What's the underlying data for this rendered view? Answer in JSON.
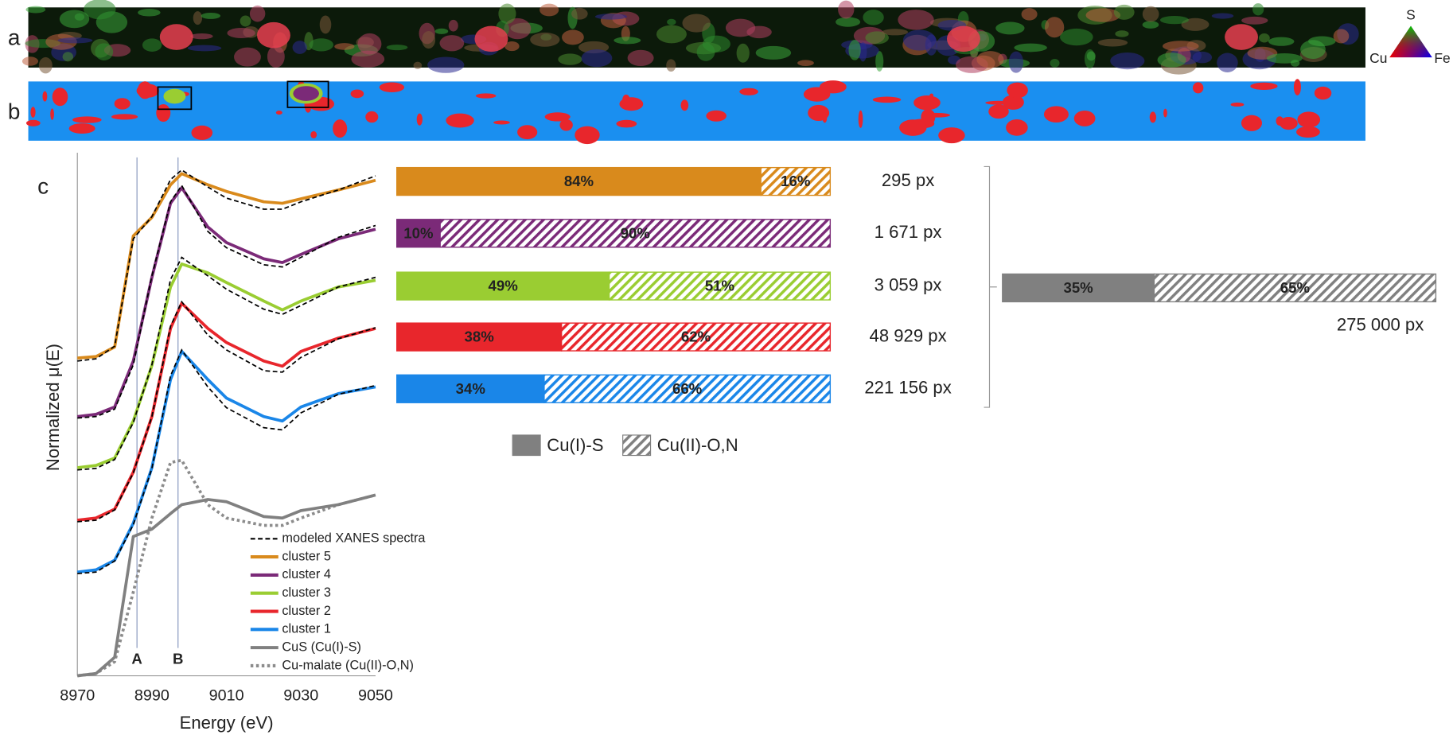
{
  "panels": {
    "labels": [
      "a",
      "b",
      "c"
    ]
  },
  "ternary": {
    "labels": [
      "S",
      "Cu",
      "Fe"
    ]
  },
  "chart_data": [
    {
      "type": "line",
      "xlabel": "Energy (eV)",
      "ylabel": "Normalized μ(E)",
      "model_name": "modeled XANES spectra",
      "x": [
        8970,
        8975,
        8980,
        8985,
        8990,
        8995,
        8998,
        9005,
        9010,
        9020,
        9025,
        9030,
        9040,
        9050
      ],
      "xlim": [
        8970,
        9050
      ],
      "xticks": [
        8970,
        8990,
        9010,
        9030,
        9050
      ],
      "ylim": [
        0,
        7.2
      ],
      "markers": [
        {
          "label": "A",
          "x": 8986
        },
        {
          "label": "B",
          "x": 8997
        }
      ],
      "series": [
        {
          "name": "cluster 5",
          "color": "#d98a1c",
          "values": [
            4.29,
            4.31,
            4.44,
            5.94,
            6.19,
            6.63,
            6.78,
            6.63,
            6.54,
            6.4,
            6.38,
            6.44,
            6.56,
            6.69
          ],
          "model": [
            4.25,
            4.28,
            4.45,
            5.9,
            6.2,
            6.7,
            6.83,
            6.6,
            6.45,
            6.3,
            6.3,
            6.4,
            6.56,
            6.75
          ]
        },
        {
          "name": "cluster 4",
          "color": "#7b2a78",
          "values": [
            3.5,
            3.53,
            3.63,
            4.25,
            5.38,
            6.38,
            6.59,
            6.06,
            5.85,
            5.63,
            5.58,
            5.69,
            5.9,
            6.03
          ],
          "model": [
            3.48,
            3.5,
            3.6,
            4.2,
            5.4,
            6.4,
            6.62,
            6.0,
            5.78,
            5.55,
            5.52,
            5.65,
            5.92,
            6.08
          ]
        },
        {
          "name": "cluster 3",
          "color": "#9acd32",
          "values": [
            2.81,
            2.84,
            2.94,
            3.44,
            4.19,
            5.25,
            5.56,
            5.44,
            5.31,
            5.06,
            4.94,
            5.06,
            5.25,
            5.34
          ],
          "model": [
            2.78,
            2.8,
            2.92,
            3.42,
            4.2,
            5.35,
            5.65,
            5.4,
            5.22,
            4.95,
            4.88,
            5.0,
            5.25,
            5.38
          ]
        },
        {
          "name": "cluster 2",
          "color": "#e8262c",
          "values": [
            2.1,
            2.13,
            2.25,
            2.75,
            3.5,
            4.69,
            5.03,
            4.69,
            4.5,
            4.25,
            4.18,
            4.38,
            4.56,
            4.69
          ],
          "model": [
            2.08,
            2.1,
            2.24,
            2.74,
            3.5,
            4.72,
            5.05,
            4.6,
            4.4,
            4.12,
            4.1,
            4.3,
            4.55,
            4.7
          ]
        },
        {
          "name": "cluster 1",
          "color": "#1a86e8",
          "values": [
            1.4,
            1.43,
            1.56,
            2.06,
            2.81,
            4.0,
            4.38,
            4.0,
            3.75,
            3.5,
            3.44,
            3.63,
            3.81,
            3.9
          ],
          "model": [
            1.38,
            1.4,
            1.55,
            2.04,
            2.8,
            4.05,
            4.4,
            3.9,
            3.62,
            3.35,
            3.32,
            3.55,
            3.8,
            3.92
          ]
        },
        {
          "name": "CuS (Cu(I)-S)",
          "color": "#808080",
          "values": [
            0,
            0.03,
            0.25,
            1.88,
            1.98,
            2.19,
            2.31,
            2.38,
            2.35,
            2.15,
            2.13,
            2.23,
            2.31,
            2.44
          ]
        },
        {
          "name": "Cu-malate (Cu(II)-O,N)",
          "color": "#8c8c8c",
          "dotted": true,
          "values": [
            0,
            0.03,
            0.19,
            1.13,
            2.13,
            2.88,
            2.91,
            2.31,
            2.13,
            2.03,
            2.03,
            2.13,
            2.31,
            2.44
          ]
        }
      ]
    },
    {
      "type": "bar",
      "orientation": "horizontal",
      "stacked": true,
      "xlim": [
        0,
        100
      ],
      "bar_colors": [
        "#d98a1c",
        "#7b2a78",
        "#9acd32",
        "#e8262c",
        "#1a86e8"
      ],
      "pixel_labels": [
        "295 px",
        "1 671 px",
        "3 059 px",
        "48 929 px",
        "221 156 px"
      ],
      "series": [
        {
          "name": "Cu(I)-S",
          "color": "#808080",
          "values": [
            84,
            10,
            49,
            38,
            34
          ],
          "value_labels": [
            "84%",
            "10%",
            "49%",
            "38%",
            "34%"
          ]
        },
        {
          "name": "Cu(II)-O,N",
          "color": "#808080",
          "hatched": true,
          "values": [
            16,
            90,
            51,
            62,
            66
          ],
          "value_labels": [
            "16%",
            "90%",
            "51%",
            "62%",
            "66%"
          ]
        }
      ]
    },
    {
      "type": "bar",
      "orientation": "horizontal",
      "stacked": true,
      "xlim": [
        0,
        100
      ],
      "pixel_labels": [
        "275 000 px"
      ],
      "series": [
        {
          "name": "Cu(I)-S",
          "color": "#808080",
          "values": [
            35
          ],
          "value_labels": [
            "35%"
          ]
        },
        {
          "name": "Cu(II)-O,N",
          "color": "#808080",
          "hatched": true,
          "values": [
            65
          ],
          "value_labels": [
            "65%"
          ]
        }
      ]
    }
  ]
}
